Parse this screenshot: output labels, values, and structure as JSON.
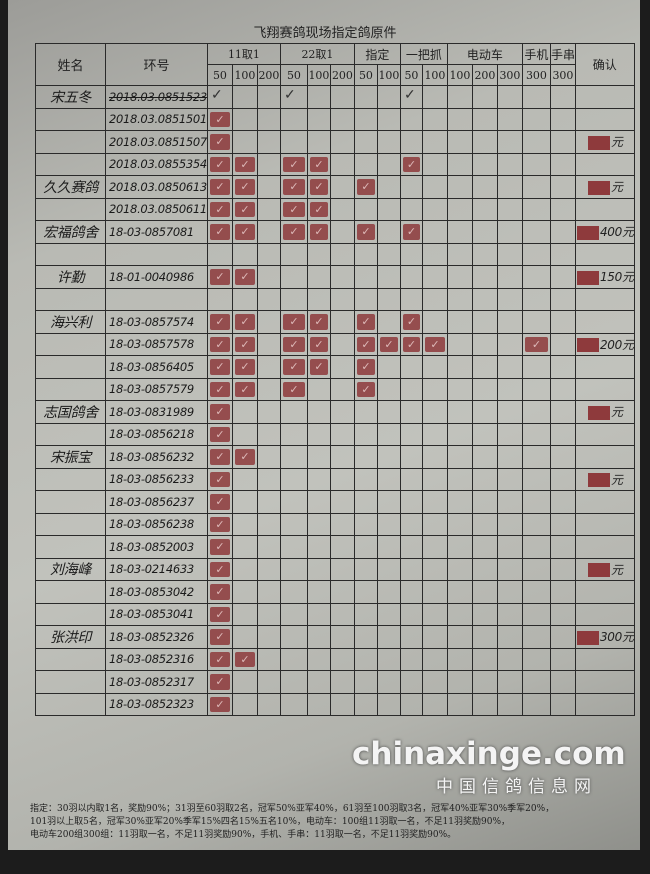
{
  "title": "飞翔赛鸽现场指定鸽原件",
  "headers": {
    "name": "姓名",
    "ring": "环号",
    "groups": [
      "11取1",
      "22取1",
      "指定",
      "一把抓",
      "电动车",
      "手机",
      "手串"
    ],
    "confirm": "确认",
    "sub": [
      "50",
      "100",
      "200",
      "50",
      "100",
      "200",
      "50",
      "100",
      "50",
      "100",
      "100",
      "200",
      "300",
      "300",
      "300"
    ]
  },
  "rows": [
    {
      "name": "宋五冬",
      "ring": "2018.03.0851523",
      "struck": true,
      "marks": [
        0,
        3,
        8
      ],
      "mark_type": "check"
    },
    {
      "name": "",
      "ring": "2018.03.0851501",
      "marks": [
        0
      ]
    },
    {
      "name": "",
      "ring": "2018.03.0851507",
      "marks": [
        0
      ]
    },
    {
      "name": "",
      "ring": "2018.03.0855354",
      "marks": [
        0,
        1,
        3,
        4,
        8
      ]
    },
    {
      "name": "久久赛鸽",
      "ring": "2018.03.0850613",
      "marks": [
        0,
        1,
        3,
        4,
        6
      ]
    },
    {
      "name": "",
      "ring": "2018.03.0850611",
      "marks": [
        0,
        1,
        3,
        4
      ]
    },
    {
      "name": "宏福鸽舍",
      "ring": "18-03-0857081",
      "marks": [
        0,
        1,
        3,
        4,
        6,
        8
      ]
    },
    {
      "name": "",
      "ring": "",
      "marks": []
    },
    {
      "name": "许勤",
      "ring": "18-01-0040986",
      "marks": [
        0,
        1
      ]
    },
    {
      "name": "",
      "ring": "",
      "marks": []
    },
    {
      "name": "海兴利",
      "ring": "18-03-0857574",
      "marks": [
        0,
        1,
        3,
        4,
        6,
        8
      ]
    },
    {
      "name": "",
      "ring": "18-03-0857578",
      "marks": [
        0,
        1,
        3,
        4,
        6,
        7,
        8,
        9,
        13
      ]
    },
    {
      "name": "",
      "ring": "18-03-0856405",
      "marks": [
        0,
        1,
        3,
        4,
        6
      ]
    },
    {
      "name": "",
      "ring": "18-03-0857579",
      "marks": [
        0,
        1,
        3,
        6
      ]
    },
    {
      "name": "志国鸽舍",
      "ring": "18-03-0831989",
      "marks": [
        0
      ]
    },
    {
      "name": "",
      "ring": "18-03-0856218",
      "marks": [
        0
      ]
    },
    {
      "name": "宋振宝",
      "ring": "18-03-0856232",
      "marks": [
        0,
        1
      ]
    },
    {
      "name": "",
      "ring": "18-03-0856233",
      "marks": [
        0
      ]
    },
    {
      "name": "",
      "ring": "18-03-0856237",
      "marks": [
        0
      ]
    },
    {
      "name": "",
      "ring": "18-03-0856238",
      "marks": [
        0
      ]
    },
    {
      "name": "",
      "ring": "18-03-0852003",
      "marks": [
        0
      ]
    },
    {
      "name": "刘海峰",
      "ring": "18-03-0214633",
      "marks": [
        0
      ]
    },
    {
      "name": "",
      "ring": "18-03-0853042",
      "marks": [
        0
      ]
    },
    {
      "name": "",
      "ring": "18-03-0853041",
      "marks": [
        0
      ]
    },
    {
      "name": "张洪印",
      "ring": "18-03-0852326",
      "marks": [
        0
      ]
    },
    {
      "name": "",
      "ring": "18-03-0852316",
      "marks": [
        0,
        1
      ]
    },
    {
      "name": "",
      "ring": "18-03-0852317",
      "marks": [
        0
      ]
    },
    {
      "name": "",
      "ring": "18-03-0852323",
      "marks": [
        0
      ]
    }
  ],
  "confirm": [
    {
      "row": 2,
      "text": "元"
    },
    {
      "row": 4,
      "text": "元"
    },
    {
      "row": 6,
      "text": "400元"
    },
    {
      "row": 8,
      "text": "150元"
    },
    {
      "row": 11,
      "text": "200元"
    },
    {
      "row": 14,
      "text": "元"
    },
    {
      "row": 17,
      "text": "元"
    },
    {
      "row": 21,
      "text": "元"
    },
    {
      "row": 24,
      "text": "300元"
    }
  ],
  "stamp_color": "#8e3a3c",
  "footer": [
    "指定：30羽以内取1名，奖励90%；31羽至60羽取2名，冠军50%亚军40%，61羽至100羽取3名，冠军40%亚军30%季军20%，",
    "101羽以上取5名，冠军30%亚军20%季军15%四名15%五名10%，电动车：100组11羽取一名，不足11羽奖励90%，",
    "电动车200组300组：11羽取一名，不足11羽奖励90%，手机、手串：11羽取一名，不足11羽奖励90%。"
  ],
  "watermark": {
    "domain": "chinaxinge.com",
    "name": "中国信鸽信息网"
  }
}
